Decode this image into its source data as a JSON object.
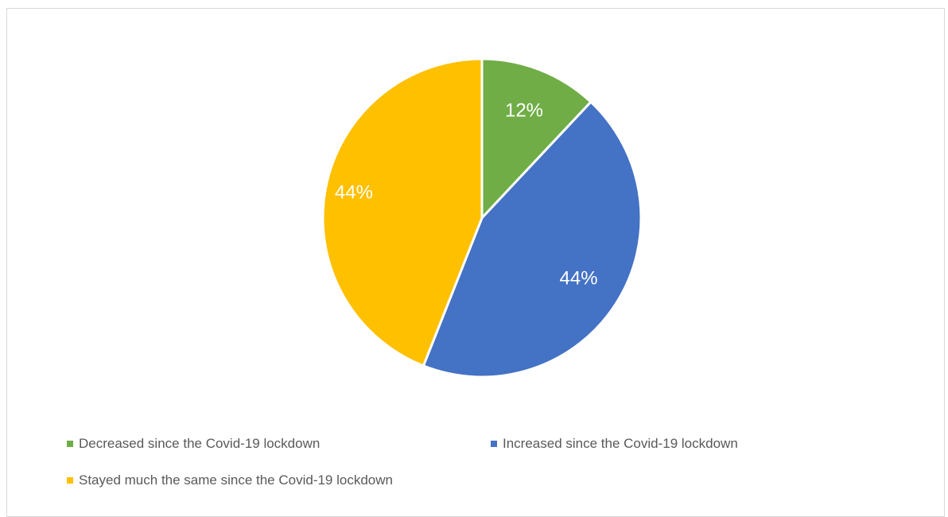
{
  "chart_data": {
    "type": "pie",
    "title": "",
    "categories": [
      "Decreased since the Covid-19 lockdown",
      "Increased since the Covid-19 lockdown",
      "Stayed much the same since the Covid-19 lockdown"
    ],
    "values": [
      12,
      44,
      44
    ],
    "data_labels": [
      "12%",
      "44%",
      "44%"
    ],
    "colors": [
      "#70ad47",
      "#4472c4",
      "#ffc000"
    ],
    "legend_position": "bottom"
  }
}
